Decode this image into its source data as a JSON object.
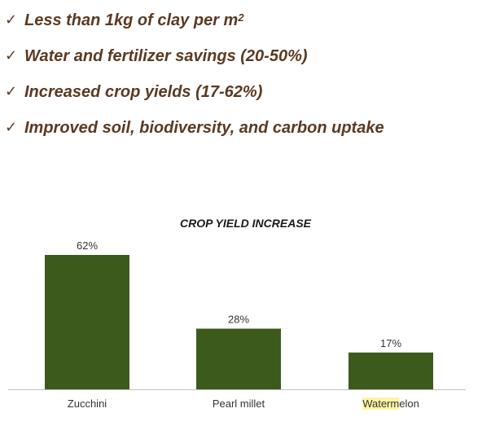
{
  "bullets": [
    {
      "text": "Less than 1kg of clay per m",
      "sup": "2"
    },
    {
      "text": "Water and fertilizer savings (20-50%)",
      "sup": ""
    },
    {
      "text": "Increased crop yields (17-62%)",
      "sup": ""
    },
    {
      "text": "Improved soil, biodiversity, and carbon uptake",
      "sup": ""
    }
  ],
  "chart_data": {
    "type": "bar",
    "title": "CROP YIELD INCREASE",
    "categories": [
      "Zucchini",
      "Pearl millet",
      "Watermelon"
    ],
    "values": [
      62,
      28,
      17
    ],
    "data_labels": [
      "62%",
      "28%",
      "17%"
    ],
    "ylim": [
      0,
      62
    ],
    "xlabel": "",
    "ylabel": "",
    "grid": false,
    "bar_color": "#3d5a1d",
    "highlight": {
      "category_index": 2,
      "highlighted_text": "Waterm",
      "rest_text": "elon",
      "color": "#fff4a3"
    }
  }
}
